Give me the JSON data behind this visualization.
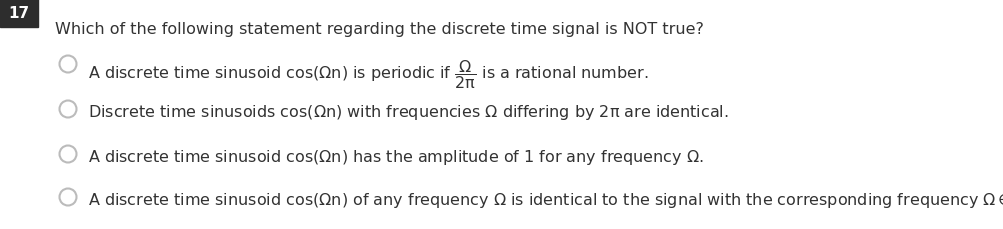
{
  "question_number": "17",
  "question_text": "Which of the following statement regarding the discrete time signal is NOT true?",
  "background_color": "#ffffff",
  "text_color": "#333333",
  "number_bg_color": "#2d2d2d",
  "number_text_color": "#ffffff",
  "circle_edge_color": "#bbbbbb",
  "font_size": 11.5,
  "question_font_size": 11.5,
  "number_font_size": 11,
  "fig_width": 10.04,
  "fig_height": 2.3,
  "dpi": 100
}
